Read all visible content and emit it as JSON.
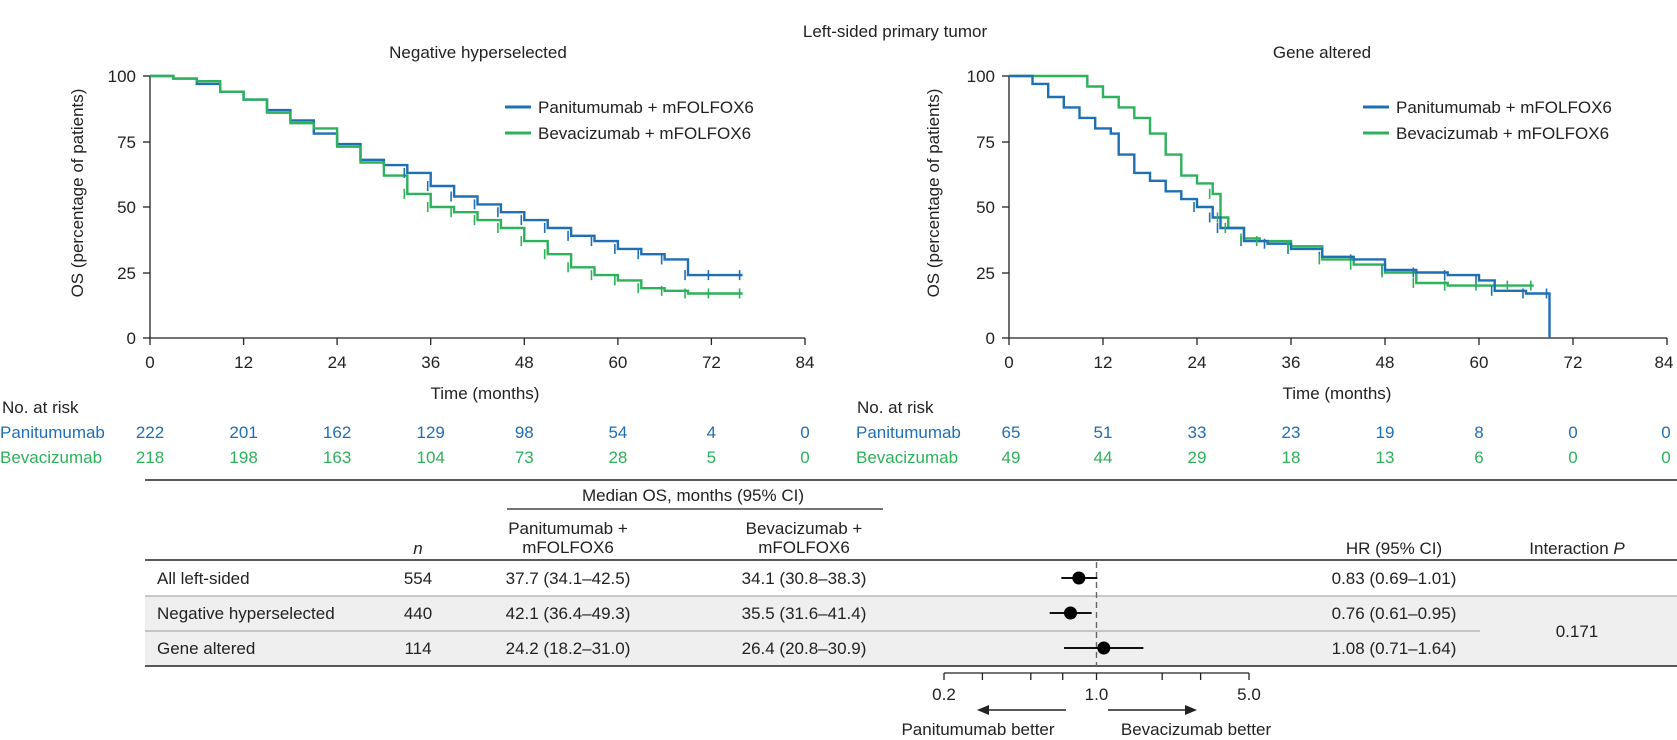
{
  "figure": {
    "suptitle": "Left-sided primary tumor",
    "colors": {
      "panitumumab": "#1f6fb4",
      "bevacizumab": "#2db15a",
      "text": "#222222"
    }
  },
  "chart_data": [
    {
      "type": "line",
      "title": "Negative hyperselected",
      "xlabel": "Time (months)",
      "ylabel": "OS (percentage of patients)",
      "xlim": [
        0,
        84
      ],
      "ylim": [
        0,
        100
      ],
      "xticks": [
        "0",
        "12",
        "24",
        "36",
        "48",
        "60",
        "72",
        "84"
      ],
      "yticks": [
        "0",
        "25",
        "50",
        "75",
        "100"
      ],
      "legend": {
        "position": "top-right",
        "entries": [
          "Panitumumab + mFOLFOX6",
          "Bevacizumab + mFOLFOX6"
        ]
      },
      "series": [
        {
          "name": "Panitumumab + mFOLFOX6",
          "x": [
            0,
            3,
            6,
            9,
            12,
            15,
            18,
            21,
            24,
            27,
            30,
            33,
            36,
            39,
            42,
            45,
            48,
            51,
            54,
            57,
            60,
            63,
            66,
            69,
            72,
            76
          ],
          "y": [
            100,
            99,
            97,
            94,
            91,
            87,
            83,
            78,
            74,
            68,
            66,
            63,
            58,
            54,
            51,
            48,
            45,
            42,
            39,
            37,
            34,
            32,
            30,
            24,
            24,
            24
          ]
        },
        {
          "name": "Bevacizumab + mFOLFOX6",
          "x": [
            0,
            3,
            6,
            9,
            12,
            15,
            18,
            21,
            24,
            27,
            30,
            33,
            36,
            39,
            42,
            45,
            48,
            51,
            54,
            57,
            60,
            63,
            66,
            69,
            72,
            76
          ],
          "y": [
            100,
            99,
            98,
            94,
            91,
            86,
            82,
            80,
            73,
            67,
            62,
            55,
            50,
            48,
            45,
            42,
            37,
            32,
            27,
            24,
            22,
            19,
            18,
            17,
            17,
            17
          ]
        }
      ],
      "at_risk": {
        "label": "No. at risk",
        "rows": [
          {
            "name": "Panitumumab",
            "values": [
              "222",
              "201",
              "162",
              "129",
              "98",
              "54",
              "4",
              "0"
            ]
          },
          {
            "name": "Bevacizumab",
            "values": [
              "218",
              "198",
              "163",
              "104",
              "73",
              "28",
              "5",
              "0"
            ]
          }
        ]
      }
    },
    {
      "type": "line",
      "title": "Gene altered",
      "xlabel": "Time (months)",
      "ylabel": "OS (percentage of patients)",
      "xlim": [
        0,
        84
      ],
      "ylim": [
        0,
        100
      ],
      "xticks": [
        "0",
        "12",
        "24",
        "36",
        "48",
        "60",
        "72",
        "84"
      ],
      "yticks": [
        "0",
        "25",
        "50",
        "75",
        "100"
      ],
      "legend": {
        "position": "top-right",
        "entries": [
          "Panitumumab + mFOLFOX6",
          "Bevacizumab + mFOLFOX6"
        ]
      },
      "series": [
        {
          "name": "Panitumumab + mFOLFOX6",
          "x": [
            0,
            3,
            5,
            7,
            9,
            11,
            13,
            14,
            16,
            18,
            20,
            22,
            24,
            26,
            27,
            30,
            33,
            36,
            40,
            44,
            48,
            52,
            56,
            60,
            62,
            66,
            69,
            69
          ],
          "y": [
            100,
            97,
            92,
            88,
            84,
            80,
            78,
            70,
            63,
            60,
            56,
            53,
            50,
            46,
            42,
            37,
            36,
            34,
            31,
            30,
            26,
            25,
            24,
            22,
            18,
            17,
            17,
            0
          ]
        },
        {
          "name": "Bevacizumab + mFOLFOX6",
          "x": [
            0,
            4,
            8,
            10,
            12,
            14,
            16,
            18,
            20,
            22,
            24,
            26,
            27,
            28,
            30,
            32,
            36,
            40,
            44,
            48,
            52,
            56,
            60,
            64,
            67
          ],
          "y": [
            100,
            100,
            100,
            96,
            92,
            88,
            84,
            78,
            70,
            62,
            59,
            55,
            46,
            42,
            38,
            37,
            35,
            30,
            28,
            25,
            21,
            20,
            20,
            20,
            20
          ]
        }
      ],
      "at_risk": {
        "label": "No. at risk",
        "rows": [
          {
            "name": "Panitumumab",
            "values": [
              "65",
              "51",
              "33",
              "23",
              "19",
              "8",
              "0",
              "0"
            ]
          },
          {
            "name": "Bevacizumab",
            "values": [
              "49",
              "44",
              "29",
              "18",
              "13",
              "6",
              "0",
              "0"
            ]
          }
        ]
      }
    },
    {
      "type": "table",
      "subtype": "forest",
      "header": {
        "median_group": "Median OS, months (95% CI)",
        "n": "n",
        "pan_1": "Panitumumab +",
        "pan_2": "mFOLFOX6",
        "bev_1": "Bevacizumab +",
        "bev_2": "mFOLFOX6",
        "hr": "HR (95% CI)",
        "interaction": "Interaction ",
        "interaction_p": "P"
      },
      "rows": [
        {
          "label": "All left-sided",
          "n": "554",
          "pan": "37.7 (34.1–42.5)",
          "bev": "34.1 (30.8–38.3)",
          "hr_text": "0.83 (0.69–1.01)",
          "hr": 0.83,
          "lo": 0.69,
          "hi": 1.01
        },
        {
          "label": "Negative hyperselected",
          "n": "440",
          "pan": "42.1 (36.4–49.3)",
          "bev": "35.5 (31.6–41.4)",
          "hr_text": "0.76 (0.61–0.95)",
          "hr": 0.76,
          "lo": 0.61,
          "hi": 0.95
        },
        {
          "label": "Gene altered",
          "n": "114",
          "pan": "24.2 (18.2–31.0)",
          "bev": "26.4 (20.8–30.9)",
          "hr_text": "1.08 (0.71–1.64)",
          "hr": 1.08,
          "lo": 0.71,
          "hi": 1.64
        }
      ],
      "interaction_p": "0.171",
      "axis": {
        "scale": "log",
        "ticks": [
          "0.2",
          "1.0",
          "5.0"
        ],
        "range": [
          0.2,
          5.0
        ]
      },
      "direction_left": "Panitumumab better",
      "direction_right": "Bevacizumab better"
    }
  ]
}
